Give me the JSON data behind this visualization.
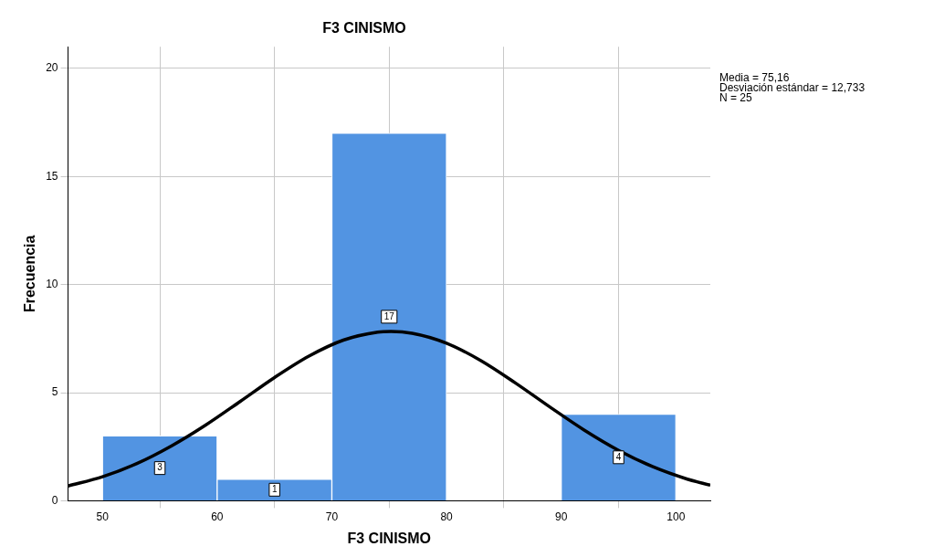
{
  "chart_data": {
    "type": "histogram",
    "title": "F3 CINISMO",
    "xlabel": "F3 CINISMO",
    "ylabel": "Frecuencia",
    "bins": [
      50,
      60,
      70,
      80,
      90,
      100
    ],
    "values": [
      3,
      1,
      17,
      0,
      4
    ],
    "color": "#5294e2",
    "series": [
      {
        "type": "line",
        "color": "#000000",
        "x": [
          47,
          50,
          53,
          56,
          59,
          62,
          65,
          68,
          71,
          74,
          75.16,
          77,
          80,
          83,
          86,
          89,
          92,
          95,
          98,
          101,
          103
        ],
        "values": [
          0.68,
          1.11,
          1.72,
          2.53,
          3.5,
          4.59,
          5.7,
          6.69,
          7.43,
          7.8,
          7.83,
          7.75,
          7.29,
          6.48,
          5.45,
          4.34,
          3.27,
          2.33,
          1.57,
          1,
          0.72
        ]
      }
    ],
    "xlim": [
      47,
      103
    ],
    "xticks": [
      50,
      60,
      70,
      80,
      90,
      100
    ],
    "ylim": [
      0,
      21
    ],
    "yticks": [
      0,
      5,
      10,
      15,
      20
    ],
    "grid": true,
    "legend": false,
    "marker": "none",
    "line_style": "solid",
    "value_labels": [
      "3",
      "1",
      "17",
      null,
      "4"
    ],
    "annotations": [
      "Media = 75,16",
      "Desviación estándar = 12,733",
      "N = 25"
    ]
  }
}
